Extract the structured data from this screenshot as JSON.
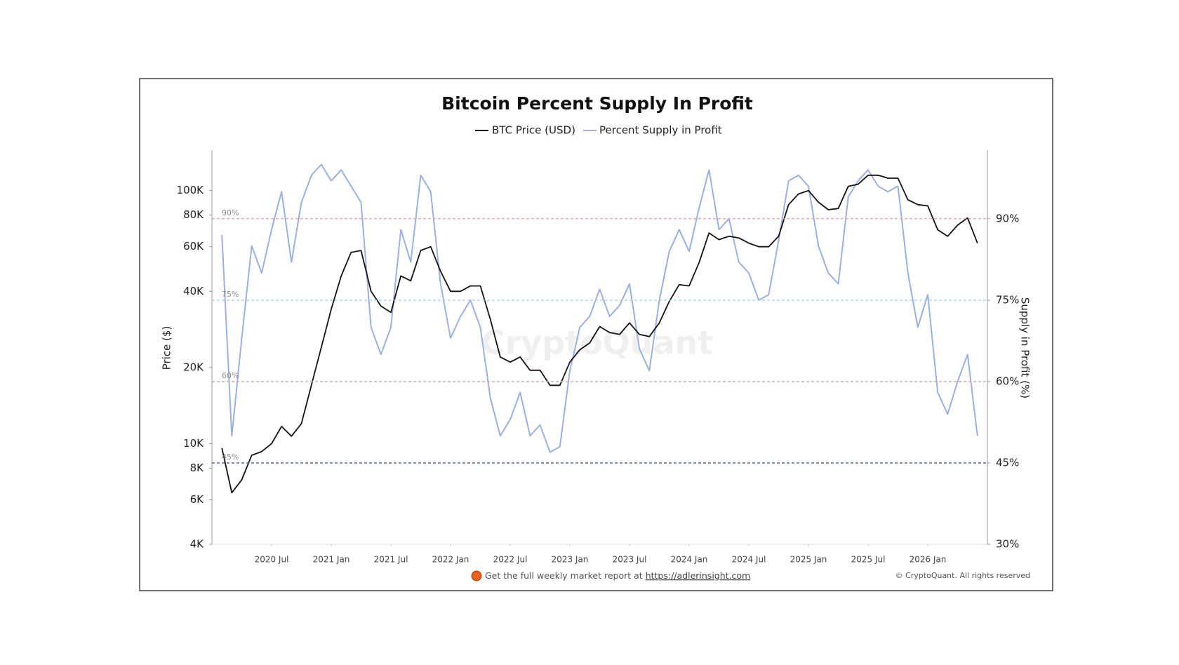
{
  "chart_data": {
    "type": "line",
    "title": "Bitcoin Percent Supply In Profit",
    "x": [
      "2020-02",
      "2020-03",
      "2020-04",
      "2020-05",
      "2020-06",
      "2020-07",
      "2020-08",
      "2020-09",
      "2020-10",
      "2020-11",
      "2020-12",
      "2021-01",
      "2021-02",
      "2021-03",
      "2021-04",
      "2021-05",
      "2021-06",
      "2021-07",
      "2021-08",
      "2021-09",
      "2021-10",
      "2021-11",
      "2021-12",
      "2022-01",
      "2022-02",
      "2022-03",
      "2022-04",
      "2022-05",
      "2022-06",
      "2022-07",
      "2022-08",
      "2022-09",
      "2022-10",
      "2022-11",
      "2022-12",
      "2023-01",
      "2023-02",
      "2023-03",
      "2023-04",
      "2023-05",
      "2023-06",
      "2023-07",
      "2023-08",
      "2023-09",
      "2023-10",
      "2023-11",
      "2023-12",
      "2024-01",
      "2024-02",
      "2024-03",
      "2024-04",
      "2024-05",
      "2024-06",
      "2024-07",
      "2024-08",
      "2024-09",
      "2024-10",
      "2024-11",
      "2024-12",
      "2025-01",
      "2025-02",
      "2025-03",
      "2025-04",
      "2025-05",
      "2025-06",
      "2025-07",
      "2025-08",
      "2025-09",
      "2025-10",
      "2025-11",
      "2025-12",
      "2026-01",
      "2026-02",
      "2026-03",
      "2026-04",
      "2026-05",
      "2026-06"
    ],
    "xlim": [
      "2020-01",
      "2026-07"
    ],
    "xticks": [
      {
        "value": "2020-07",
        "label": "2020 Jul"
      },
      {
        "value": "2021-01",
        "label": "2021 Jan"
      },
      {
        "value": "2021-07",
        "label": "2021 Jul"
      },
      {
        "value": "2022-01",
        "label": "2022 Jan"
      },
      {
        "value": "2022-07",
        "label": "2022 Jul"
      },
      {
        "value": "2023-01",
        "label": "2023 Jan"
      },
      {
        "value": "2023-07",
        "label": "2023 Jul"
      },
      {
        "value": "2024-01",
        "label": "2024 Jan"
      },
      {
        "value": "2024-07",
        "label": "2024 Jul"
      },
      {
        "value": "2025-01",
        "label": "2025 Jan"
      },
      {
        "value": "2025-07",
        "label": "2025 Jul"
      },
      {
        "value": "2026-01",
        "label": "2026 Jan"
      }
    ],
    "series": [
      {
        "name": "BTC Price (USD)",
        "color": "#111111",
        "axis": "y",
        "values": [
          9600,
          6400,
          7200,
          9000,
          9300,
          10000,
          11700,
          10700,
          12000,
          17000,
          24000,
          34000,
          46000,
          57000,
          58000,
          40000,
          35000,
          33000,
          46000,
          44000,
          58000,
          60000,
          48000,
          40000,
          40000,
          42000,
          42000,
          31000,
          22000,
          21000,
          22000,
          19500,
          19500,
          17000,
          17000,
          21000,
          23500,
          25000,
          29000,
          27500,
          27000,
          30000,
          27000,
          26500,
          30000,
          36500,
          42500,
          42000,
          52000,
          68000,
          64000,
          66000,
          65000,
          62000,
          60000,
          60000,
          66000,
          88000,
          97000,
          100000,
          90000,
          84000,
          85000,
          104000,
          106000,
          115000,
          115000,
          112000,
          112000,
          92000,
          88000,
          87000,
          70000,
          66000,
          73000,
          78000,
          62000
        ]
      },
      {
        "name": "Percent Supply in Profit",
        "color": "#9bb0e0",
        "axis": "y2",
        "values": [
          87,
          50,
          68,
          85,
          80,
          88,
          95,
          82,
          93,
          98,
          100,
          97,
          99,
          96,
          93,
          70,
          65,
          70,
          88,
          82,
          98,
          95,
          78,
          68,
          72,
          75,
          70,
          57,
          50,
          53,
          58,
          50,
          52,
          47,
          48,
          62,
          70,
          72,
          77,
          72,
          74,
          78,
          66,
          62,
          75,
          84,
          88,
          84,
          92,
          99,
          88,
          90,
          82,
          80,
          75,
          76,
          86,
          97,
          98,
          96,
          85,
          80,
          78,
          94,
          97,
          99,
          96,
          95,
          96,
          80,
          70,
          76,
          58,
          54,
          60,
          65,
          50
        ]
      }
    ],
    "y_label": "Price ($)",
    "y2_label": "Supply in Profit (%)",
    "ylog": true,
    "ylim": [
      4000,
      140000
    ],
    "yticks": [
      {
        "value": 4000,
        "label": "4K"
      },
      {
        "value": 6000,
        "label": "6K"
      },
      {
        "value": 8000,
        "label": "8K"
      },
      {
        "value": 10000,
        "label": "10K"
      },
      {
        "value": 20000,
        "label": "20K"
      },
      {
        "value": 40000,
        "label": "40K"
      },
      {
        "value": 60000,
        "label": "60K"
      },
      {
        "value": 80000,
        "label": "80K"
      },
      {
        "value": 100000,
        "label": "100K"
      }
    ],
    "y2lim": [
      30,
      102
    ],
    "y2ticks": [
      {
        "value": 30,
        "label": "30%"
      },
      {
        "value": 45,
        "label": "45%"
      },
      {
        "value": 60,
        "label": "60%"
      },
      {
        "value": 75,
        "label": "75%"
      },
      {
        "value": 90,
        "label": "90%"
      }
    ],
    "reference_lines": [
      {
        "value": 90,
        "label": "90%",
        "color": "#e2a2a8"
      },
      {
        "value": 75,
        "label": "75%",
        "color": "#a8c6e8"
      },
      {
        "value": 60,
        "label": "60%",
        "color": "#c9a3b5"
      },
      {
        "value": 45,
        "label": "45%",
        "color": "#4a5a8a"
      }
    ],
    "watermark": "CryptoQuant",
    "footer_text": "Get the full weekly market report at",
    "footer_link": "https://adlerinsight.com",
    "copyright": "© CryptoQuant. All rights reserved"
  }
}
